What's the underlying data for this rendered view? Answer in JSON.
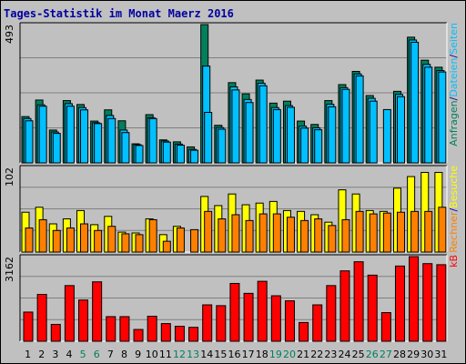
{
  "title": "Tages-Statistik im Monat Maerz 2016",
  "colors": {
    "hits": "#00805c",
    "files": "#00c0ff",
    "sites": "#ffff00",
    "visits": "#ff8000",
    "kbytes": "#ff0000",
    "weekday_label": "#000000",
    "weekend_label": "#00805c",
    "background": "#c0c0c0",
    "title": "#0000a0"
  },
  "chart_data": [
    {
      "type": "bar",
      "panel": "top",
      "ymax_label": "493",
      "ylim": [
        0,
        493
      ],
      "grid": true,
      "right_labels": [
        {
          "text": "Anfragen",
          "color": "#00805c"
        },
        {
          "text": "/",
          "color": "#0000a0"
        },
        {
          "text": "Dateien",
          "color": "#00c0ff"
        },
        {
          "text": "/",
          "color": "#0000a0"
        },
        {
          "text": "Seiten",
          "color": "#00c0ff"
        }
      ],
      "categories": [
        "1",
        "2",
        "3",
        "4",
        "5",
        "6",
        "7",
        "8",
        "9",
        "10",
        "11",
        "12",
        "13",
        "14",
        "15",
        "16",
        "17",
        "18",
        "19",
        "20",
        "21",
        "22",
        "23",
        "24",
        "25",
        "26",
        "27",
        "28",
        "29",
        "30",
        "31"
      ],
      "series": [
        {
          "name": "Anfragen",
          "values": [
            165,
            224,
            117,
            222,
            208,
            149,
            189,
            150,
            68,
            172,
            82,
            75,
            57,
            493,
            134,
            286,
            246,
            295,
            213,
            220,
            149,
            137,
            222,
            279,
            326,
            240,
            0,
            255,
            448,
            366,
            341
          ]
        },
        {
          "name": "Dateien",
          "values": [
            158,
            207,
            110,
            211,
            197,
            143,
            169,
            117,
            65,
            161,
            78,
            67,
            48,
            345,
            126,
            271,
            226,
            284,
            197,
            204,
            131,
            125,
            209,
            268,
            317,
            230,
            0,
            244,
            438,
            351,
            329
          ]
        },
        {
          "name": "Seiten",
          "values": [
            150,
            202,
            105,
            202,
            189,
            140,
            158,
            108,
            62,
            158,
            74,
            63,
            45,
            180,
            120,
            260,
            215,
            275,
            190,
            198,
            124,
            118,
            200,
            262,
            310,
            220,
            190,
            236,
            430,
            341,
            324
          ]
        }
      ]
    },
    {
      "type": "bar",
      "panel": "middle",
      "ymax_label": "102",
      "ylim": [
        0,
        102
      ],
      "grid": true,
      "right_labels": [
        {
          "text": "Rechner",
          "color": "#ff8000"
        },
        {
          "text": "/",
          "color": "#0000a0"
        },
        {
          "text": "Besuche",
          "color": "#ffff00"
        }
      ],
      "categories": [
        "1",
        "2",
        "3",
        "4",
        "5",
        "6",
        "7",
        "8",
        "9",
        "10",
        "11",
        "12",
        "13",
        "14",
        "15",
        "16",
        "17",
        "18",
        "19",
        "20",
        "21",
        "22",
        "23",
        "24",
        "25",
        "26",
        "27",
        "28",
        "29",
        "30",
        "31"
      ],
      "series": [
        {
          "name": "Besuche",
          "values": [
            48,
            54,
            34,
            40,
            50,
            33,
            43,
            24,
            23,
            40,
            21,
            31,
            0,
            67,
            56,
            70,
            57,
            59,
            61,
            50,
            49,
            45,
            36,
            75,
            70,
            50,
            49,
            77,
            91,
            96,
            96
          ]
        },
        {
          "name": "Rechner",
          "values": [
            29,
            39,
            26,
            29,
            34,
            26,
            31,
            22,
            21,
            39,
            13,
            29,
            27,
            49,
            40,
            45,
            38,
            46,
            46,
            42,
            38,
            40,
            32,
            39,
            49,
            46,
            47,
            48,
            49,
            49,
            54
          ]
        }
      ]
    },
    {
      "type": "bar",
      "panel": "bottom",
      "ymax_label": "3162",
      "ylim": [
        0,
        3162
      ],
      "grid": true,
      "right_labels": [
        {
          "text": "kB",
          "color": "#ff0000"
        }
      ],
      "categories": [
        "1",
        "2",
        "3",
        "4",
        "5",
        "6",
        "7",
        "8",
        "9",
        "10",
        "11",
        "12",
        "13",
        "14",
        "15",
        "16",
        "17",
        "18",
        "19",
        "20",
        "21",
        "22",
        "23",
        "24",
        "25",
        "26",
        "27",
        "28",
        "29",
        "30",
        "31"
      ],
      "series": [
        {
          "name": "kB",
          "values": [
            1090,
            1750,
            630,
            2080,
            1540,
            2220,
            920,
            920,
            440,
            935,
            660,
            560,
            520,
            1360,
            1330,
            2160,
            1790,
            2240,
            1700,
            1510,
            700,
            1360,
            2080,
            2630,
            2970,
            2470,
            1070,
            2810,
            3162,
            2900,
            2860
          ]
        }
      ]
    }
  ],
  "day_labels": [
    {
      "text": "1",
      "weekend": false
    },
    {
      "text": "2",
      "weekend": false
    },
    {
      "text": "3",
      "weekend": false
    },
    {
      "text": "4",
      "weekend": false
    },
    {
      "text": "5",
      "weekend": true
    },
    {
      "text": "6",
      "weekend": true
    },
    {
      "text": "7",
      "weekend": false
    },
    {
      "text": "8",
      "weekend": false
    },
    {
      "text": "9",
      "weekend": false
    },
    {
      "text": "10",
      "weekend": false
    },
    {
      "text": "11",
      "weekend": false
    },
    {
      "text": "12",
      "weekend": true
    },
    {
      "text": "13",
      "weekend": true
    },
    {
      "text": "14",
      "weekend": false
    },
    {
      "text": "15",
      "weekend": false
    },
    {
      "text": "16",
      "weekend": false
    },
    {
      "text": "17",
      "weekend": false
    },
    {
      "text": "18",
      "weekend": false
    },
    {
      "text": "19",
      "weekend": true
    },
    {
      "text": "20",
      "weekend": true
    },
    {
      "text": "21",
      "weekend": false
    },
    {
      "text": "22",
      "weekend": false
    },
    {
      "text": "23",
      "weekend": false
    },
    {
      "text": "24",
      "weekend": false
    },
    {
      "text": "25",
      "weekend": false
    },
    {
      "text": "26",
      "weekend": true
    },
    {
      "text": "27",
      "weekend": true
    },
    {
      "text": "28",
      "weekend": false
    },
    {
      "text": "29",
      "weekend": false
    },
    {
      "text": "30",
      "weekend": false
    },
    {
      "text": "31",
      "weekend": false
    }
  ]
}
